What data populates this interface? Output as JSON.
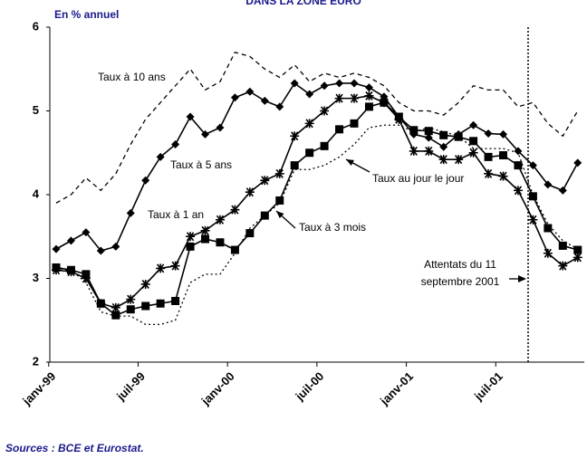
{
  "chart_data": {
    "type": "line",
    "title": "DANS LA ZONE EURO",
    "y_label": "En % annuel",
    "source": "Sources : BCE et Eurostat.",
    "categories": [
      "janv-99",
      null,
      null,
      null,
      null,
      null,
      "juil-99",
      null,
      null,
      null,
      null,
      null,
      "janv-00",
      null,
      null,
      null,
      null,
      null,
      "juil-00",
      null,
      null,
      null,
      null,
      null,
      "janv-01",
      null,
      null,
      null,
      null,
      null,
      "juil-01",
      null,
      null,
      null,
      null,
      null
    ],
    "ylim": [
      2,
      6
    ],
    "yticks": [
      2,
      3,
      4,
      5,
      6
    ],
    "series": [
      {
        "name": "Taux à 10 ans",
        "color": "#000000",
        "dash": "dashed",
        "marker": "none",
        "values": [
          3.9,
          4.0,
          4.2,
          4.05,
          4.25,
          4.6,
          4.9,
          5.1,
          5.3,
          5.5,
          5.25,
          5.35,
          5.7,
          5.65,
          5.5,
          5.4,
          5.55,
          5.35,
          5.45,
          5.4,
          5.45,
          5.4,
          5.3,
          5.1,
          5.0,
          5.0,
          4.95,
          5.1,
          5.3,
          5.25,
          5.25,
          5.05,
          5.1,
          4.85,
          4.7,
          5.0
        ]
      },
      {
        "name": "Taux à 5 ans",
        "color": "#000000",
        "dash": "solid",
        "marker": "diamond",
        "values": [
          3.35,
          3.45,
          3.55,
          3.33,
          3.38,
          3.78,
          4.17,
          4.45,
          4.6,
          4.93,
          4.72,
          4.8,
          5.16,
          5.23,
          5.12,
          5.05,
          5.33,
          5.2,
          5.3,
          5.33,
          5.33,
          5.28,
          5.17,
          4.93,
          4.72,
          4.68,
          4.57,
          4.72,
          4.83,
          4.73,
          4.72,
          4.52,
          4.35,
          4.12,
          4.05,
          4.38
        ]
      },
      {
        "name": "Taux à 1 an",
        "color": "#000000",
        "dash": "solid",
        "marker": "star",
        "values": [
          3.1,
          3.08,
          3.0,
          2.7,
          2.65,
          2.75,
          2.93,
          3.12,
          3.15,
          3.5,
          3.57,
          3.7,
          3.82,
          4.03,
          4.17,
          4.25,
          4.7,
          4.85,
          5.0,
          5.15,
          5.15,
          5.18,
          5.1,
          4.9,
          4.52,
          4.52,
          4.42,
          4.42,
          4.5,
          4.25,
          4.22,
          4.05,
          3.7,
          3.3,
          3.15,
          3.25
        ]
      },
      {
        "name": "Taux à 3 mois",
        "color": "#000000",
        "dash": "solid",
        "marker": "square",
        "values": [
          3.13,
          3.1,
          3.05,
          2.7,
          2.56,
          2.63,
          2.67,
          2.7,
          2.73,
          3.38,
          3.47,
          3.43,
          3.34,
          3.54,
          3.75,
          3.93,
          4.35,
          4.5,
          4.58,
          4.78,
          4.85,
          5.05,
          5.1,
          4.93,
          4.77,
          4.76,
          4.71,
          4.69,
          4.64,
          4.45,
          4.47,
          4.35,
          3.98,
          3.6,
          3.39,
          3.34
        ]
      },
      {
        "name": "Taux au jour le jour",
        "color": "#000000",
        "dash": "dotted",
        "marker": "none",
        "values": [
          3.1,
          3.1,
          2.95,
          2.6,
          2.55,
          2.55,
          2.45,
          2.45,
          2.5,
          2.95,
          3.05,
          3.05,
          3.3,
          3.6,
          3.75,
          3.9,
          4.3,
          4.3,
          4.35,
          4.45,
          4.6,
          4.8,
          4.83,
          4.83,
          4.75,
          4.8,
          4.75,
          4.7,
          4.55,
          4.55,
          4.55,
          4.5,
          4.0,
          3.65,
          3.45,
          3.35
        ]
      }
    ],
    "annotation": [
      "Attentats du 11",
      "septembre 2001"
    ]
  }
}
